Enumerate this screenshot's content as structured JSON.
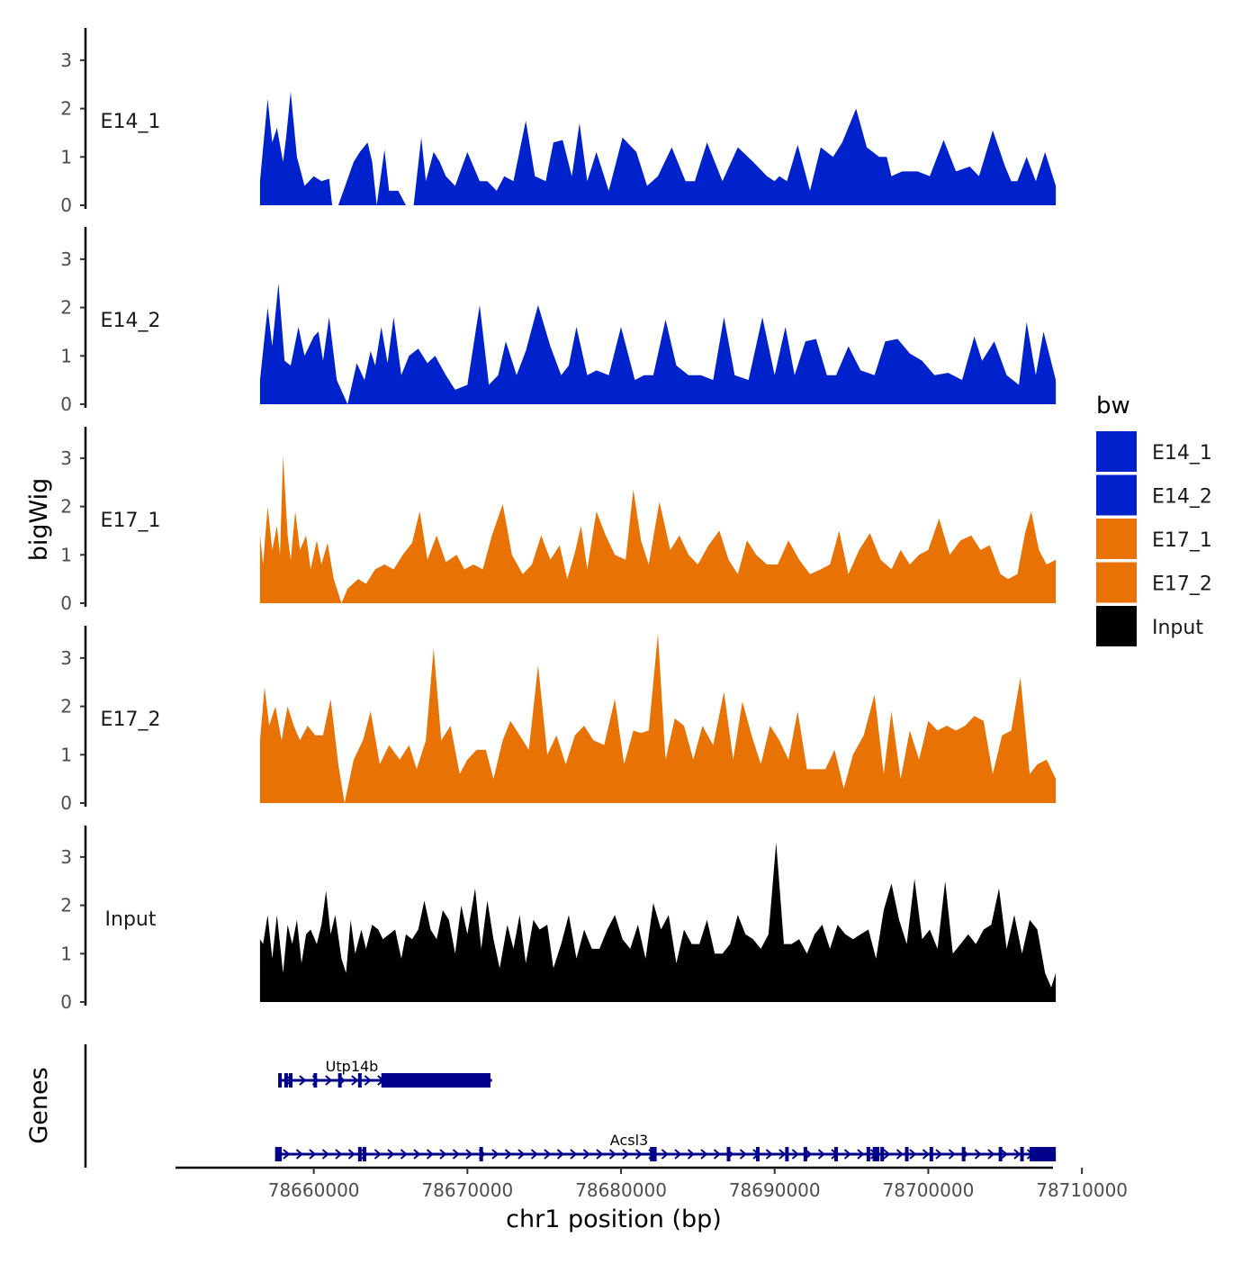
{
  "chart_data": {
    "type": "area",
    "title": "",
    "ylabel": "bigWig",
    "genes_label": "Genes",
    "xlabel": "chr1 position (bp)",
    "xlim": [
      78651000,
      78710500
    ],
    "data_range": [
      78656500,
      78708300
    ],
    "ylim": [
      0,
      3.6
    ],
    "y_ticks": [
      "0",
      "1",
      "2",
      "3"
    ],
    "x_ticks": [
      {
        "value": 78660000,
        "label": "78660000"
      },
      {
        "value": 78670000,
        "label": "78670000"
      },
      {
        "value": 78680000,
        "label": "78680000"
      },
      {
        "value": 78690000,
        "label": "78690000"
      },
      {
        "value": 78700000,
        "label": "78700000"
      },
      {
        "value": 78710000,
        "label": "78710000"
      }
    ],
    "legend": {
      "title": "bw",
      "position": "right",
      "entries": [
        {
          "name": "E14_1",
          "color": "#0022CC"
        },
        {
          "name": "E14_2",
          "color": "#0022CC"
        },
        {
          "name": "E17_1",
          "color": "#E87204"
        },
        {
          "name": "E17_2",
          "color": "#E87204"
        },
        {
          "name": "Input",
          "color": "#000000"
        }
      ]
    },
    "series": [
      {
        "name": "E14_1",
        "color": "#0022CC",
        "x": [
          78656500,
          78657000,
          78657300,
          78657600,
          78658000,
          78658200,
          78658500,
          78658900,
          78659400,
          78660000,
          78660500,
          78661000,
          78661200,
          78661600,
          78662600,
          78663000,
          78663500,
          78663800,
          78664100,
          78664600,
          78664900,
          78665500,
          78666000,
          78666500,
          78667000,
          78667300,
          78667800,
          78668200,
          78668600,
          78669200,
          78670000,
          78670800,
          78671300,
          78671900,
          78672400,
          78673000,
          78673800,
          78674400,
          78675100,
          78675600,
          78676200,
          78676800,
          78677300,
          78677800,
          78678400,
          78679200,
          78680100,
          78681000,
          78681700,
          78682400,
          78683300,
          78684200,
          78684800,
          78685600,
          78686600,
          78687600,
          78688600,
          78689500,
          78690000,
          78690300,
          78690800,
          78691500,
          78692300,
          78693000,
          78693800,
          78694400,
          78695300,
          78696000,
          78696800,
          78697300,
          78697600,
          78698300,
          78699300,
          78700100,
          78701000,
          78701800,
          78702700,
          78703300,
          78704200,
          78705000,
          78705400,
          78705800,
          78706400,
          78707000,
          78707600,
          78708300
        ],
        "y": [
          0.5,
          2.2,
          1.3,
          1.6,
          0.9,
          1.4,
          2.35,
          1.0,
          0.4,
          0.6,
          0.5,
          0.55,
          0,
          0,
          0.9,
          1.1,
          1.3,
          0.9,
          0,
          1.15,
          0.3,
          0.3,
          0,
          0,
          1.4,
          0.5,
          1.1,
          0.9,
          0.6,
          0.4,
          1.1,
          0.5,
          0.5,
          0.3,
          0.6,
          0.5,
          1.75,
          0.6,
          0.5,
          1.3,
          1.35,
          0.6,
          1.7,
          0.5,
          1.1,
          0.3,
          1.4,
          1.1,
          0.4,
          0.6,
          1.2,
          0.5,
          0.5,
          1.3,
          0.5,
          1.2,
          0.9,
          0.6,
          0.5,
          0.6,
          0.5,
          1.25,
          0.3,
          1.2,
          1.0,
          1.3,
          2.0,
          1.2,
          1.0,
          1.0,
          0.6,
          0.7,
          0.7,
          0.6,
          1.35,
          0.7,
          0.8,
          0.6,
          1.55,
          0.8,
          0.5,
          0.5,
          1.0,
          0.5,
          1.1,
          0.4
        ]
      },
      {
        "name": "E14_2",
        "color": "#0022CC",
        "x": [
          78656500,
          78657000,
          78657300,
          78657700,
          78658100,
          78658500,
          78659000,
          78659400,
          78660000,
          78660300,
          78660600,
          78661000,
          78661500,
          78662200,
          78662800,
          78663300,
          78663700,
          78664000,
          78664400,
          78664800,
          78665200,
          78665700,
          78666200,
          78666800,
          78667400,
          78667900,
          78668600,
          78669200,
          78670000,
          78670800,
          78671400,
          78672000,
          78672500,
          78673200,
          78673800,
          78674600,
          78675400,
          78676100,
          78676600,
          78677100,
          78677800,
          78678400,
          78679200,
          78680000,
          78680900,
          78681500,
          78682100,
          78682900,
          78683600,
          78684400,
          78685200,
          78686000,
          78686700,
          78687400,
          78688300,
          78689200,
          78690000,
          78690700,
          78691300,
          78692000,
          78692700,
          78693400,
          78694000,
          78694800,
          78695600,
          78696500,
          78697200,
          78698000,
          78698800,
          78699600,
          78700400,
          78701300,
          78702200,
          78703000,
          78703500,
          78704300,
          78705100,
          78705900,
          78706400,
          78707000,
          78707500,
          78708300
        ],
        "y": [
          0.5,
          2.0,
          1.2,
          2.5,
          0.9,
          0.8,
          1.6,
          1.0,
          1.4,
          1.5,
          0.9,
          1.8,
          0.5,
          0,
          0.85,
          0.5,
          1.1,
          0.8,
          1.6,
          0.85,
          1.8,
          0.6,
          1.0,
          1.15,
          0.85,
          1.0,
          0.6,
          0.3,
          0.4,
          2.05,
          0.4,
          0.6,
          1.3,
          0.6,
          1.1,
          2.05,
          1.2,
          0.6,
          0.8,
          1.6,
          0.6,
          0.7,
          0.6,
          1.6,
          0.5,
          0.6,
          0.6,
          1.75,
          0.8,
          0.6,
          0.6,
          0.5,
          1.8,
          0.6,
          0.5,
          1.8,
          0.6,
          1.6,
          0.6,
          1.3,
          1.35,
          0.6,
          0.6,
          1.2,
          0.7,
          0.6,
          1.3,
          1.35,
          1.05,
          0.9,
          0.6,
          0.65,
          0.5,
          1.4,
          0.9,
          1.3,
          0.6,
          0.4,
          1.7,
          0.6,
          1.5,
          0.5
        ]
      },
      {
        "name": "E17_1",
        "color": "#E87204",
        "x": [
          78656500,
          78656700,
          78657000,
          78657300,
          78657600,
          78657800,
          78658000,
          78658300,
          78658500,
          78658800,
          78659100,
          78659500,
          78659800,
          78660200,
          78660500,
          78660900,
          78661300,
          78661800,
          78662200,
          78662900,
          78663400,
          78664000,
          78664600,
          78665200,
          78665800,
          78666400,
          78666900,
          78667400,
          78668000,
          78668600,
          78669300,
          78669800,
          78670400,
          78671000,
          78671600,
          78672300,
          78672900,
          78673600,
          78674200,
          78674800,
          78675400,
          78676000,
          78676500,
          78677000,
          78677400,
          78677800,
          78678400,
          78679000,
          78679600,
          78680300,
          78680800,
          78681300,
          78681800,
          78682500,
          78683200,
          78683800,
          78684400,
          78685000,
          78685700,
          78686400,
          78687000,
          78687600,
          78688200,
          78688800,
          78689500,
          78690200,
          78690900,
          78691600,
          78692300,
          78693000,
          78693600,
          78694200,
          78694800,
          78695500,
          78696200,
          78696900,
          78697600,
          78698200,
          78698800,
          78699400,
          78700000,
          78700700,
          78701400,
          78702100,
          78702800,
          78703400,
          78704000,
          78704700,
          78705200,
          78705800,
          78706300,
          78706700,
          78707200,
          78707700,
          78708300
        ],
        "y": [
          1.4,
          0.8,
          2.0,
          1.1,
          1.6,
          1.0,
          3.05,
          1.4,
          0.9,
          1.9,
          1.1,
          1.4,
          0.7,
          1.3,
          0.8,
          1.25,
          0.5,
          0,
          0.3,
          0.5,
          0.4,
          0.7,
          0.8,
          0.7,
          1.0,
          1.25,
          1.9,
          0.9,
          1.4,
          0.85,
          1.0,
          0.7,
          0.8,
          0.7,
          1.4,
          2.05,
          1.0,
          0.6,
          0.8,
          1.4,
          0.9,
          1.2,
          0.5,
          1.05,
          1.6,
          0.7,
          1.9,
          1.4,
          1.0,
          0.9,
          2.35,
          1.3,
          0.8,
          2.1,
          1.1,
          1.4,
          1.0,
          0.8,
          1.2,
          1.5,
          0.9,
          0.6,
          1.3,
          1.0,
          0.8,
          0.8,
          1.3,
          0.9,
          0.6,
          0.7,
          0.8,
          1.5,
          0.6,
          1.1,
          1.45,
          0.9,
          0.7,
          1.1,
          0.8,
          1.0,
          1.1,
          1.75,
          1.0,
          1.3,
          1.4,
          1.1,
          1.2,
          0.6,
          0.5,
          0.6,
          1.45,
          1.9,
          1.1,
          0.8,
          0.9
        ]
      },
      {
        "name": "E17_2",
        "color": "#E87204",
        "x": [
          78656500,
          78656800,
          78657100,
          78657500,
          78657900,
          78658300,
          78658700,
          78659100,
          78659600,
          78660100,
          78660600,
          78661100,
          78661600,
          78662000,
          78662600,
          78663200,
          78663700,
          78664300,
          78664900,
          78665600,
          78666200,
          78666700,
          78667300,
          78667800,
          78668300,
          78668900,
          78669500,
          78670000,
          78670600,
          78671200,
          78671700,
          78672300,
          78672800,
          78673400,
          78674000,
          78674600,
          78675200,
          78675800,
          78676400,
          78677000,
          78677600,
          78678200,
          78678900,
          78679600,
          78680200,
          78680800,
          78681300,
          78681800,
          78682400,
          78682900,
          78683500,
          78684100,
          78684700,
          78685300,
          78686000,
          78686700,
          78687300,
          78687900,
          78688500,
          78689100,
          78689700,
          78690300,
          78690900,
          78691500,
          78692100,
          78692700,
          78693300,
          78693900,
          78694500,
          78695100,
          78695800,
          78696500,
          78697100,
          78697600,
          78698200,
          78698800,
          78699400,
          78700000,
          78700600,
          78701200,
          78701800,
          78702400,
          78703000,
          78703600,
          78704200,
          78704800,
          78705400,
          78706000,
          78706600,
          78707100,
          78707700,
          78708300
        ],
        "y": [
          1.3,
          2.4,
          1.6,
          2.0,
          1.3,
          2.0,
          1.6,
          1.3,
          1.6,
          1.4,
          1.4,
          2.15,
          0.8,
          0,
          0.9,
          1.3,
          1.9,
          0.8,
          1.2,
          0.9,
          1.2,
          0.7,
          1.3,
          3.2,
          1.3,
          1.6,
          0.6,
          0.9,
          1.1,
          1.1,
          0.5,
          1.3,
          1.7,
          1.4,
          1.1,
          2.85,
          1.0,
          1.4,
          0.8,
          1.4,
          1.6,
          1.3,
          1.2,
          2.15,
          0.8,
          1.5,
          1.45,
          1.5,
          3.5,
          0.9,
          1.75,
          1.6,
          0.9,
          1.6,
          1.2,
          2.3,
          0.9,
          2.1,
          1.4,
          0.8,
          1.6,
          1.3,
          0.9,
          1.9,
          0.7,
          0.7,
          0.7,
          1.1,
          0.3,
          1.0,
          1.4,
          2.25,
          0.6,
          1.9,
          0.5,
          1.5,
          0.9,
          1.7,
          1.5,
          1.6,
          1.5,
          1.6,
          1.8,
          1.7,
          0.6,
          1.4,
          1.5,
          2.6,
          0.6,
          0.8,
          0.9,
          0.5
        ]
      },
      {
        "name": "Input",
        "color": "#000000",
        "x": [
          78656500,
          78656700,
          78657000,
          78657300,
          78657600,
          78658000,
          78658300,
          78658600,
          78658900,
          78659200,
          78659500,
          78659800,
          78660200,
          78660500,
          78660800,
          78661100,
          78661400,
          78661800,
          78662100,
          78662400,
          78662700,
          78663100,
          78663400,
          78663800,
          78664200,
          78664500,
          78664900,
          78665300,
          78665700,
          78666000,
          78666400,
          78666800,
          78667200,
          78667600,
          78668000,
          78668400,
          78668800,
          78669200,
          78669600,
          78670000,
          78670500,
          78670900,
          78671300,
          78671700,
          78672100,
          78672600,
          78673000,
          78673400,
          78673800,
          78674300,
          78674700,
          78675200,
          78675600,
          78676100,
          78676600,
          78677100,
          78677600,
          78678100,
          78678600,
          78679100,
          78679600,
          78680100,
          78680600,
          78681100,
          78681600,
          78682100,
          78682600,
          78683100,
          78683600,
          78684100,
          78684600,
          78685100,
          78685600,
          78686100,
          78686600,
          78687100,
          78687600,
          78688100,
          78688600,
          78689100,
          78689600,
          78690100,
          78690600,
          78691100,
          78691600,
          78692100,
          78692600,
          78693100,
          78693600,
          78694100,
          78694600,
          78695100,
          78695600,
          78696100,
          78696600,
          78697100,
          78697600,
          78698100,
          78698600,
          78699100,
          78699600,
          78700100,
          78700600,
          78701100,
          78701600,
          78702100,
          78702600,
          78703100,
          78703600,
          78704100,
          78704600,
          78705100,
          78705600,
          78706100,
          78706600,
          78707100,
          78707600,
          78708000,
          78708300
        ],
        "y": [
          1.3,
          1.2,
          1.8,
          0.9,
          1.8,
          0.6,
          1.6,
          1.2,
          1.7,
          0.8,
          1.4,
          1.5,
          1.2,
          1.6,
          2.3,
          1.4,
          1.8,
          0.9,
          0.6,
          1.7,
          1.0,
          1.5,
          1.1,
          1.6,
          1.5,
          1.3,
          1.4,
          1.5,
          0.9,
          1.4,
          1.3,
          1.5,
          2.1,
          1.5,
          1.3,
          1.9,
          1.7,
          1.0,
          2.0,
          1.4,
          2.35,
          1.1,
          2.1,
          1.3,
          0.7,
          1.6,
          1.1,
          1.8,
          0.8,
          1.7,
          1.5,
          1.6,
          0.7,
          1.2,
          1.8,
          0.9,
          1.5,
          1.1,
          1.1,
          1.5,
          1.8,
          1.3,
          1.1,
          1.6,
          0.9,
          2.05,
          1.5,
          1.8,
          0.8,
          1.5,
          1.2,
          1.2,
          1.7,
          1.0,
          1.0,
          1.2,
          1.8,
          1.4,
          1.3,
          1.1,
          1.4,
          3.3,
          1.2,
          1.2,
          1.3,
          1.0,
          1.4,
          1.6,
          1.1,
          1.6,
          1.4,
          1.3,
          1.4,
          1.5,
          0.9,
          1.9,
          2.45,
          1.7,
          1.2,
          2.55,
          1.3,
          1.5,
          1.1,
          2.5,
          1.0,
          1.2,
          1.4,
          1.2,
          1.5,
          1.6,
          2.35,
          1.1,
          1.8,
          1.0,
          1.7,
          1.5,
          0.6,
          0.3,
          0.6
        ]
      }
    ],
    "genes": [
      {
        "name": "Utp14b",
        "color": "#00008B",
        "start": 78657700,
        "end": 78671600,
        "cds_start": 78664400,
        "cds_end": 78671500,
        "exons": [
          78657800,
          78658200,
          78658500,
          78660100,
          78661700,
          78663000
        ]
      },
      {
        "name": "Acsl3",
        "color": "#00008B",
        "start": 78657500,
        "end": 78708300,
        "cds_start": 78706600,
        "cds_end": 78708300,
        "exons": [
          78657600,
          78657800,
          78663000,
          78663300,
          78670900,
          78682000,
          78682200,
          78687000,
          78688900,
          78690800,
          78692000,
          78694000,
          78696100,
          78696500,
          78696700,
          78697000,
          78698600,
          78700200,
          78702300,
          78704700,
          78706100
        ]
      }
    ]
  }
}
